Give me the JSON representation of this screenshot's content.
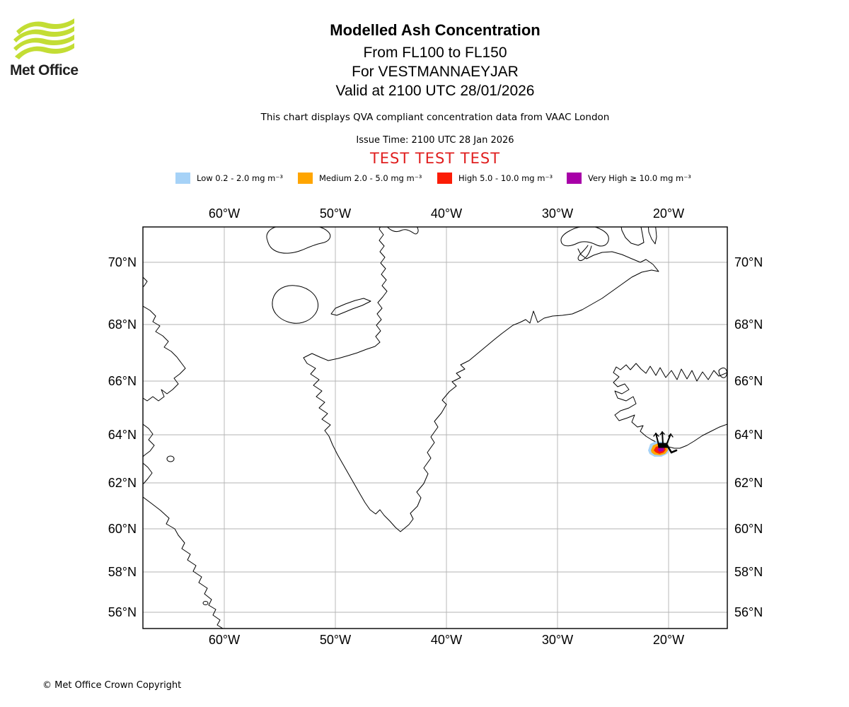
{
  "logo": {
    "brand": "Met Office",
    "wave_color": "#c3dd34"
  },
  "header": {
    "title": "Modelled Ash Concentration",
    "subtitle_fl": "From FL100 to FL150",
    "subtitle_site": "For VESTMANNAEYJAR",
    "subtitle_valid": "Valid at 2100 UTC 28/01/2026",
    "description": "This chart displays QVA compliant concentration data from VAAC London",
    "issue_time": "Issue Time: 2100 UTC 28 Jan 2026",
    "test_banner": "TEST TEST TEST",
    "test_color": "#e01f1f"
  },
  "legend": {
    "items": [
      {
        "name": "low",
        "label": "Low 0.2 - 2.0 mg m⁻³",
        "color": "#a6d2f7"
      },
      {
        "name": "medium",
        "label": "Medium 2.0 - 5.0 mg m⁻³",
        "color": "#ffa500"
      },
      {
        "name": "high",
        "label": "High 5.0 - 10.0 mg m⁻³",
        "color": "#fb1c06"
      },
      {
        "name": "very-high",
        "label": "Very High ≥ 10.0 mg m⁻³",
        "color": "#a800a8"
      }
    ]
  },
  "map": {
    "lon_labels": [
      "60°W",
      "50°W",
      "40°W",
      "30°W",
      "20°W"
    ],
    "lat_labels": [
      "70°N",
      "68°N",
      "66°N",
      "64°N",
      "62°N",
      "60°N",
      "58°N",
      "56°N"
    ]
  },
  "footer": {
    "copyright": "© Met Office Crown Copyright"
  }
}
